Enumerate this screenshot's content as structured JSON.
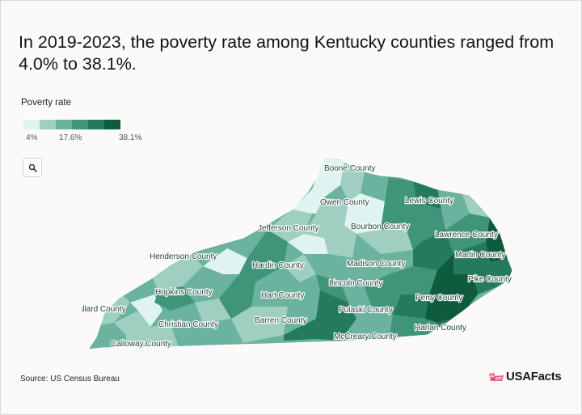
{
  "title": "In 2019-2023, the poverty rate among Kentucky counties ranged from 4.0% to 38.1%.",
  "legend": {
    "title": "Poverty rate",
    "min_label": "4%",
    "mid_label": "17.6%",
    "max_label": "38.1%",
    "colors": [
      "#dff3f1",
      "#9fcfc1",
      "#6bb29f",
      "#3f9479",
      "#237a5c",
      "#0f5b3e"
    ]
  },
  "zoom": {
    "icon": "magnifier-icon"
  },
  "map": {
    "state": "Kentucky",
    "counties": [
      {
        "name": "Boone County",
        "shade": 3
      },
      {
        "name": "Owen County",
        "shade": 1
      },
      {
        "name": "Lewis County",
        "shade": 3
      },
      {
        "name": "Jefferson County",
        "shade": 0
      },
      {
        "name": "Bourbon County",
        "shade": 2
      },
      {
        "name": "Lawrence County",
        "shade": 4
      },
      {
        "name": "Henderson County",
        "shade": 1
      },
      {
        "name": "Hardin County",
        "shade": 2
      },
      {
        "name": "Madison County",
        "shade": 1
      },
      {
        "name": "Martin County",
        "shade": 5
      },
      {
        "name": "Lincoln County",
        "shade": 3
      },
      {
        "name": "Pike County",
        "shade": 4
      },
      {
        "name": "Hopkins County",
        "shade": 3
      },
      {
        "name": "Hart County",
        "shade": 3
      },
      {
        "name": "Perry County",
        "shade": 5
      },
      {
        "name": "Ballard County",
        "shade": 2
      },
      {
        "name": "Pulaski County",
        "shade": 3
      },
      {
        "name": "Christian County",
        "shade": 2
      },
      {
        "name": "Barren County",
        "shade": 2
      },
      {
        "name": "Harlan County",
        "shade": 5
      },
      {
        "name": "McCreary County",
        "shade": 5
      },
      {
        "name": "Calloway County",
        "shade": 2
      }
    ]
  },
  "source": "Source: US Census Bureau",
  "brand": {
    "name": "USAFacts",
    "logo_color": "#e8567c"
  }
}
